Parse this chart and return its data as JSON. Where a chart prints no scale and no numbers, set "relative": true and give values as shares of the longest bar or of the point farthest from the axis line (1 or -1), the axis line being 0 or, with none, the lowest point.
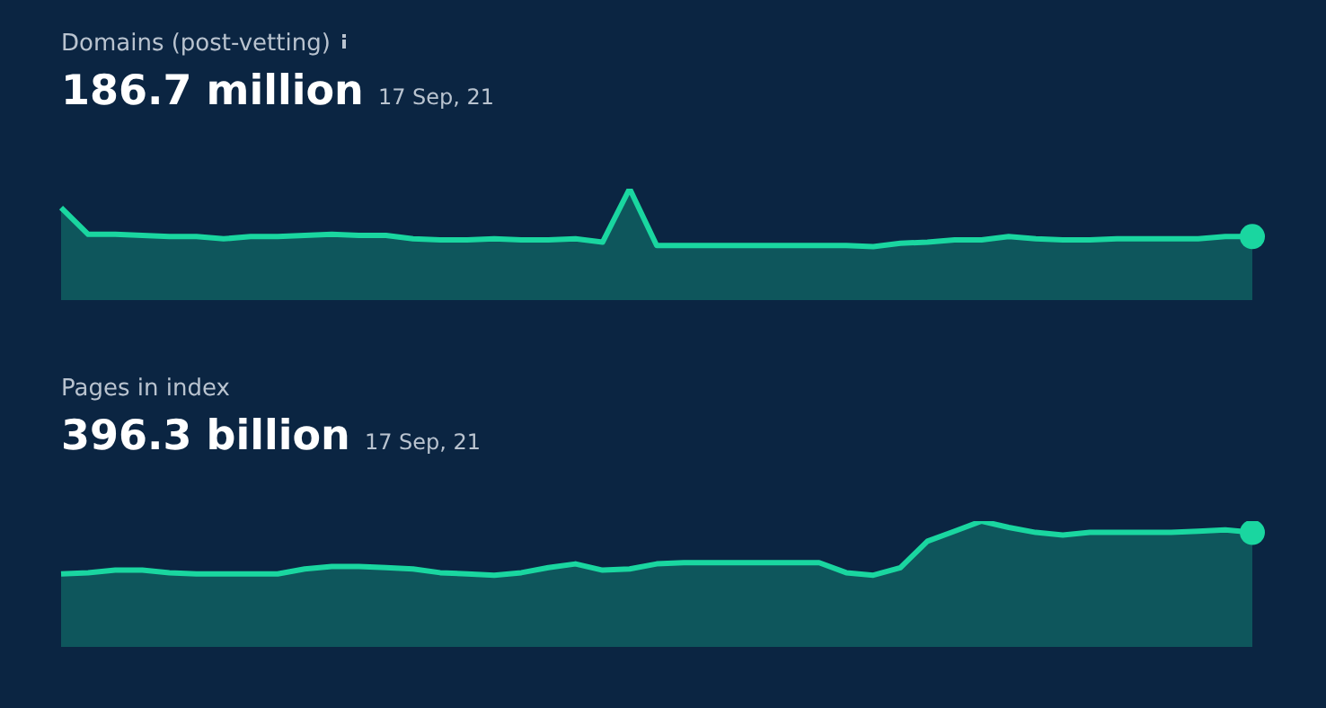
{
  "chart_data": [
    {
      "type": "area",
      "title": "Domains (post-vetting)",
      "subtitle": "186.7 million",
      "annotations": [
        "17 Sep, 21"
      ],
      "relative": true,
      "color": "#1ad6a0",
      "categories": [
        null,
        null,
        null,
        null,
        null,
        null,
        null,
        null,
        null,
        null,
        null,
        null,
        null,
        null,
        null,
        null,
        null,
        null,
        null,
        null,
        null,
        null,
        null,
        null,
        null,
        null,
        null,
        null,
        null,
        null,
        null,
        null,
        null,
        null,
        null,
        null,
        null,
        null,
        null,
        null,
        null,
        null,
        null,
        null,
        null
      ],
      "values": [
        0.83,
        0.59,
        0.59,
        0.58,
        0.57,
        0.57,
        0.55,
        0.57,
        0.57,
        0.58,
        0.59,
        0.58,
        0.58,
        0.55,
        0.54,
        0.54,
        0.55,
        0.54,
        0.54,
        0.55,
        0.52,
        1,
        0.49,
        0.49,
        0.49,
        0.49,
        0.49,
        0.49,
        0.49,
        0.49,
        0.48,
        0.51,
        0.52,
        0.54,
        0.54,
        0.57,
        0.55,
        0.54,
        0.54,
        0.55,
        0.55,
        0.55,
        0.55,
        0.57,
        0.57
      ]
    },
    {
      "type": "area",
      "title": "Pages in index",
      "subtitle": "396.3 billion",
      "annotations": [
        "17 Sep, 21"
      ],
      "relative": true,
      "color": "#1ad6a0",
      "categories": [
        null,
        null,
        null,
        null,
        null,
        null,
        null,
        null,
        null,
        null,
        null,
        null,
        null,
        null,
        null,
        null,
        null,
        null,
        null,
        null,
        null,
        null,
        null,
        null,
        null,
        null,
        null,
        null,
        null,
        null,
        null,
        null,
        null,
        null,
        null,
        null,
        null,
        null,
        null,
        null,
        null,
        null,
        null,
        null,
        null
      ],
      "values": [
        0.58,
        0.59,
        0.61,
        0.61,
        0.59,
        0.58,
        0.58,
        0.58,
        0.58,
        0.62,
        0.64,
        0.64,
        0.63,
        0.62,
        0.59,
        0.58,
        0.57,
        0.59,
        0.63,
        0.66,
        0.61,
        0.62,
        0.66,
        0.67,
        0.67,
        0.67,
        0.67,
        0.67,
        0.67,
        0.59,
        0.57,
        0.63,
        0.84,
        0.92,
        1,
        0.95,
        0.91,
        0.89,
        0.91,
        0.91,
        0.91,
        0.91,
        0.92,
        0.93,
        0.91
      ]
    }
  ]
}
